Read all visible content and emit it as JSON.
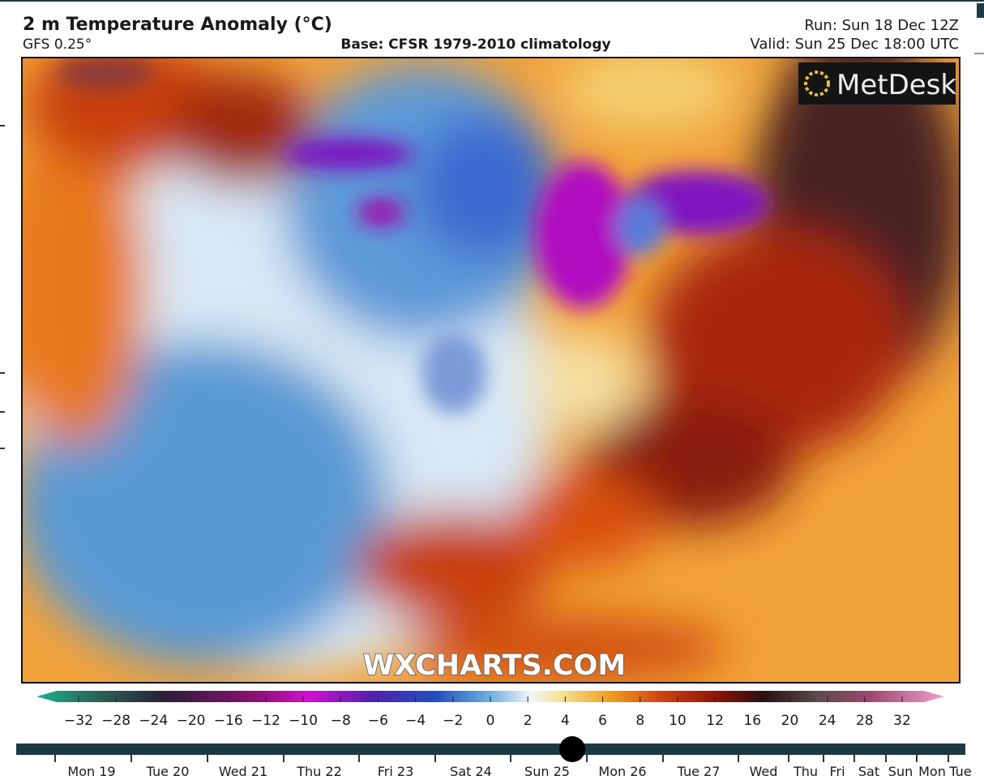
{
  "header": {
    "title": "2 m Temperature Anomaly (°C)",
    "model": "GFS 0.25°",
    "base": "Base: CFSR 1979-2010 climatology",
    "run": "Run: Sun 18 Dec 12Z",
    "valid": "Valid: Sun 25 Dec 18:00 UTC"
  },
  "map": {
    "watermark": "WXCHARTS.COM",
    "logo": "MetDesk"
  },
  "colorbar": {
    "labels": [
      "−32",
      "−28",
      "−24",
      "−20",
      "−16",
      "−12",
      "−10",
      "−8",
      "−6",
      "−4",
      "−2",
      "0",
      "2",
      "4",
      "6",
      "8",
      "10",
      "12",
      "16",
      "20",
      "24",
      "28",
      "32"
    ]
  },
  "timeline": {
    "labels": [
      "Mon 19",
      "Tue 20",
      "Wed 21",
      "Thu 22",
      "Fri 23",
      "Sat 24",
      "Sun 25",
      "Mon 26",
      "Tue 27",
      "Wed",
      "Thu",
      "Fri",
      "Sat",
      "Sun",
      "Mon",
      "Tue"
    ]
  }
}
